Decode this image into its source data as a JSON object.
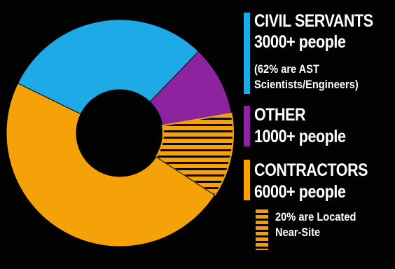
{
  "chart_data": {
    "type": "pie",
    "donut": true,
    "title": "",
    "slices": [
      {
        "label": "CIVIL SERVANTS",
        "value": 3000,
        "color": "#1eaae6"
      },
      {
        "label": "OTHER",
        "value": 1000,
        "color": "#8c24a0"
      },
      {
        "label": "CONTRACTORS (Near-Site)",
        "value": 1200,
        "color": "#f5a209",
        "hatched": true
      },
      {
        "label": "CONTRACTORS",
        "value": 4800,
        "color": "#f5a209"
      }
    ]
  },
  "legend": {
    "civil": {
      "title": "CIVIL SERVANTS",
      "count": "3000+ people",
      "note_line1": "(62% are AST",
      "note_line2": "Scientists/Engineers)",
      "color": "#1eaae6"
    },
    "other": {
      "title": "OTHER",
      "count": "1000+ people",
      "color": "#8c24a0"
    },
    "contractors": {
      "title": "CONTRACTORS",
      "count": "6000+ people",
      "note_line1": "20% are Located",
      "note_line2": "Near-Site",
      "color": "#f5a209"
    }
  }
}
